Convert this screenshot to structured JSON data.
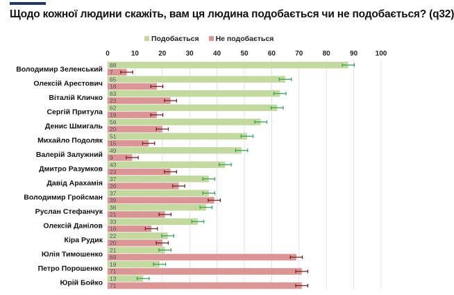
{
  "title": "Щодо кожної людини скажіть, вам ця людина подобається чи не подобається? (q32)",
  "chart_data": {
    "type": "bar",
    "orientation": "horizontal",
    "title": "Щодо кожної людини скажіть, вам ця людина подобається чи не подобається? (q32)",
    "xlim": [
      0,
      100
    ],
    "xticks": [
      "0",
      "10",
      "20",
      "30",
      "40",
      "50",
      "60",
      "70",
      "80",
      "90",
      "100"
    ],
    "legend_position": "top",
    "grid": true,
    "error_bars": true,
    "categories": [
      "Володимир Зеленський",
      "Олексій Арестович",
      "Віталій Кличко",
      "Сергій Притула",
      "Денис Шмигаль",
      "Михайло Подоляк",
      "Валерій Залужний",
      "Дмитро Разумков",
      "Давід Арахамія",
      "Володимир Гройсман",
      "Руслан Стефанчук",
      "Олексій Данілов",
      "Кіра Рудик",
      "Юлія Тимошенко",
      "Петро Порошенко",
      "Юрій Бойко"
    ],
    "series": [
      {
        "name": "Подобається",
        "color": "#c4d9a0",
        "error_color": "#2ea44f",
        "values": [
          88,
          65,
          63,
          62,
          56,
          51,
          49,
          43,
          37,
          37,
          36,
          33,
          22,
          21,
          19,
          13
        ]
      },
      {
        "name": "Не подобається",
        "color": "#d99694",
        "error_color": "#7a1f1f",
        "values": [
          7,
          18,
          23,
          18,
          20,
          15,
          9,
          23,
          26,
          39,
          21,
          16,
          20,
          69,
          71,
          71
        ]
      }
    ]
  }
}
